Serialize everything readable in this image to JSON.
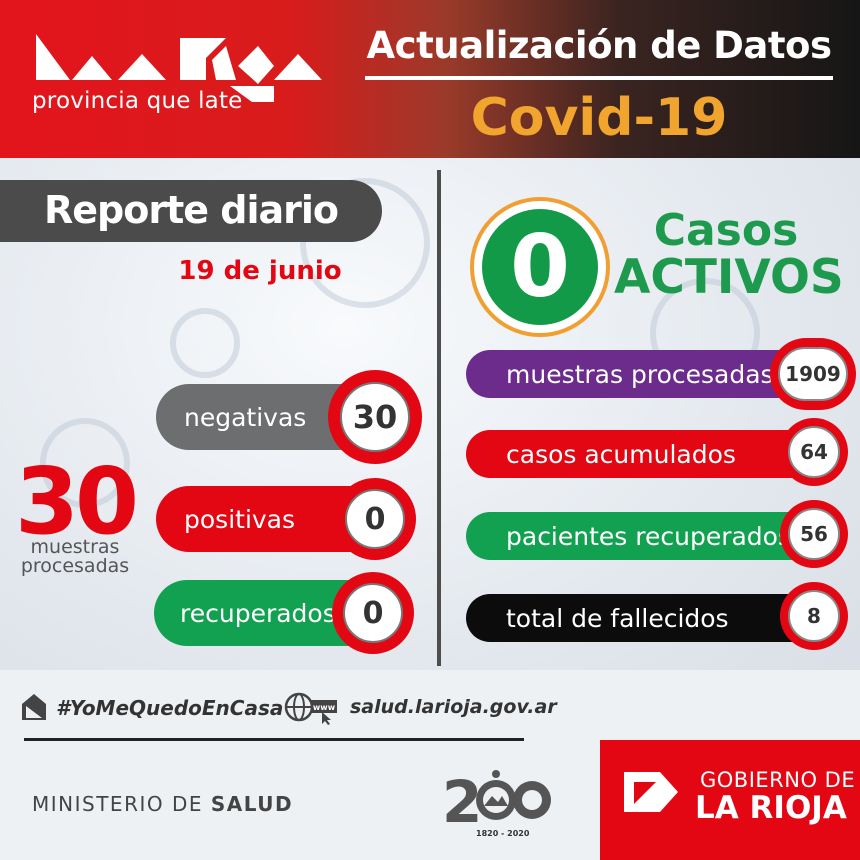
{
  "header": {
    "logo_tagline": "provincia que late",
    "update_title": "Actualización de Datos",
    "covid_title": "Covid-19"
  },
  "report": {
    "title": "Reporte diario",
    "date": "19 de junio"
  },
  "daily": {
    "total_value": "30",
    "total_label_line1": "muestras",
    "total_label_line2": "procesadas",
    "items": [
      {
        "label": "negativas",
        "value": "30",
        "color": "#6d6e70"
      },
      {
        "label": "positivas",
        "value": "0",
        "color": "#e30613"
      },
      {
        "label": "recuperados",
        "value": "0",
        "color": "#12a150"
      }
    ]
  },
  "active": {
    "value": "0",
    "label_line1": "Casos",
    "label_line2": "ACTIVOS",
    "color": "#129a49"
  },
  "totals": [
    {
      "label": "muestras procesadas",
      "value": "1909",
      "color": "#6b2c8c"
    },
    {
      "label": "casos acumulados",
      "value": "64",
      "color": "#e30613"
    },
    {
      "label": "pacientes recuperados",
      "value": "56",
      "color": "#12a150"
    },
    {
      "label": "total de fallecidos",
      "value": "8",
      "color": "#0c0c0c"
    }
  ],
  "footer": {
    "hashtag": "#YoMeQuedoEnCasa",
    "website": "salud.larioja.gov.ar",
    "ministry_prefix": "MINISTERIO DE ",
    "ministry_bold": "SALUD",
    "anniversary_years": "1820 - 2020",
    "gov_line1": "GOBIERNO DE",
    "gov_line2": "LA RIOJA"
  }
}
